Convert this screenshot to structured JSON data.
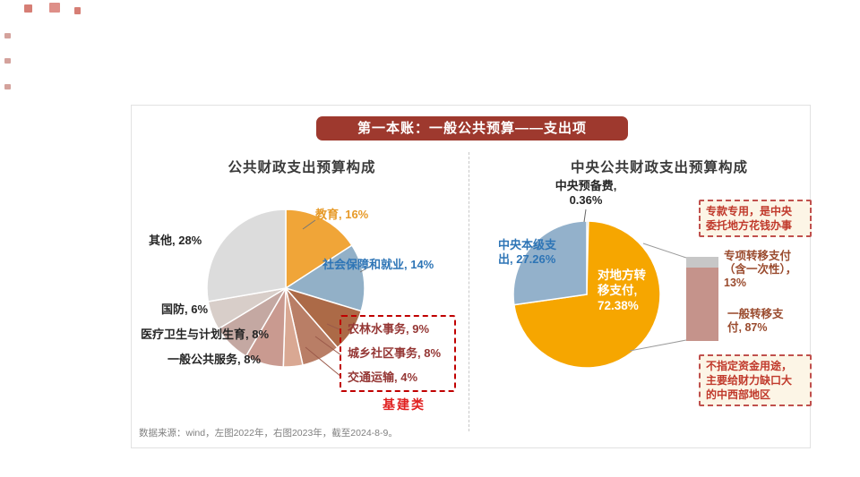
{
  "banner": {
    "title": "第一本账：一般公共预算——支出项"
  },
  "footer": {
    "note": "数据来源：wind，左图2022年，右图2023年，截至2024-8-9。"
  },
  "theme": {
    "banner_bg": "#9E392E",
    "banner_text": "#FFFFFF",
    "heading": "#3A3A3A",
    "label_dark": "#262626",
    "label_blue": "#2E75B6",
    "label_orange": "#E79A28",
    "label_brown": "#9A4B2E",
    "infra_label": "#953735",
    "infra_title": "#E02020",
    "infra_border": "#C00000",
    "callout_text": "#C0392B",
    "callout_bg": "#FCF5E6",
    "callout_border": "#C0504D",
    "divider": "#C8C8C8",
    "slide_border": "#E2E2E2",
    "footer": "#808080"
  },
  "chart_data": [
    {
      "type": "pie",
      "title": "公共财政支出预算构成",
      "categories": [
        "教育",
        "社会保障和就业",
        "农林水事务",
        "城乡社区事务",
        "交通运输",
        "一般公共服务",
        "医疗卫生与计划生育",
        "国防",
        "其他"
      ],
      "values": [
        16,
        14,
        9,
        8,
        4,
        8,
        8,
        6,
        28
      ],
      "unit": "%",
      "colors": [
        "#F0A538",
        "#92B0C7",
        "#AC6A47",
        "#B97E66",
        "#D9A893",
        "#C99A90",
        "#C4A8A2",
        "#D8CEC9",
        "#DCDCDC"
      ],
      "display_labels": {
        "education": "教育, 16%",
        "social_security": "社会保障和就业, 14%",
        "others": "其他, 28%",
        "defense": "国防, 6%",
        "healthcare": "医疗卫生与计划生育, 8%",
        "public_service": "一般公共服务, 8%",
        "agriculture": "农林水事务, 9%",
        "community": "城乡社区事务, 8%",
        "transport": "交通运输, 4%"
      },
      "infra_group_label": "基建类"
    },
    {
      "type": "pie",
      "title": "中央公共财政支出预算构成",
      "categories": [
        "中央预备费",
        "对地方转移支付",
        "中央本级支出"
      ],
      "values": [
        0.36,
        72.38,
        27.26
      ],
      "unit": "%",
      "colors": [
        "#4D4D4D",
        "#F6A600",
        "#93B1CB"
      ],
      "display_labels": {
        "reserve": "中央预备费,\n0.36%",
        "central_level": "中央本级支\n出, 27.26%",
        "transfer": "对地方转\n移支付,\n72.38%"
      },
      "transfer_breakdown": {
        "type": "bar",
        "segments": [
          {
            "name": "专项转移支付（含一次性）",
            "label": "专项转移支付\n（含一次性），\n13%",
            "value": 13,
            "color": "#C7C7C7"
          },
          {
            "name": "一般转移支付",
            "label": "一般转移支\n付, 87%",
            "value": 87,
            "color": "#C5938B"
          }
        ]
      },
      "callouts": {
        "top": "专款专用，是中央\n委托地方花钱办事",
        "bottom": "不指定资金用途，\n主要给财力缺口大\n的中西部地区"
      }
    }
  ]
}
